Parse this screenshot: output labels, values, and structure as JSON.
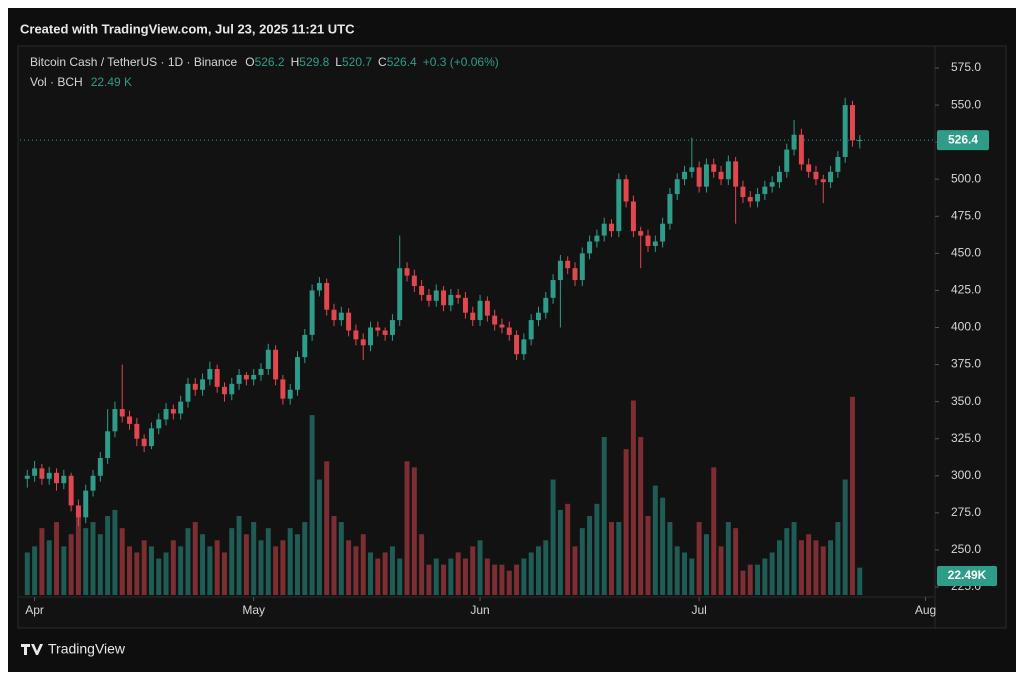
{
  "chart_data": {
    "type": "candlestick",
    "title": "Created with TradingView.com, Jul 23, 2025 11:21 UTC",
    "symbol": "Bitcoin Cash / TetherUS · 1D · Binance",
    "legend_keys": [
      "O",
      "H",
      "L",
      "C"
    ],
    "change": "+0.3 (+0.06%)",
    "volume_title": "Vol · BCH",
    "volume_header_label": "22.49 K",
    "volume_axis_label": "22.49K",
    "brand": "TradingView",
    "up_color": "#2e9c88",
    "down_color": "#e0474f",
    "volume_up_color": "#1f5c55",
    "volume_down_color": "#7c2e33",
    "grid": false,
    "xlim": [
      -1,
      124.3
    ],
    "xticks": [
      {
        "value": 1,
        "label": "Apr"
      },
      {
        "value": 31,
        "label": "May"
      },
      {
        "value": 62,
        "label": "Jun"
      },
      {
        "value": 92,
        "label": "Jul"
      },
      {
        "value": 123,
        "label": "Aug"
      }
    ],
    "ylim": [
      219.6,
      588.5
    ],
    "yticks": [
      {
        "value": 225,
        "label": "225.0"
      },
      {
        "value": 250,
        "label": "250.0"
      },
      {
        "value": 275,
        "label": "275.0"
      },
      {
        "value": 300,
        "label": "300.0"
      },
      {
        "value": 325,
        "label": "325.0"
      },
      {
        "value": 350,
        "label": "350.0"
      },
      {
        "value": 375,
        "label": "375.0"
      },
      {
        "value": 400,
        "label": "400.0"
      },
      {
        "value": 425,
        "label": "425.0"
      },
      {
        "value": 450,
        "label": "450.0"
      },
      {
        "value": 475,
        "label": "475.0"
      },
      {
        "value": 500,
        "label": "500.0"
      },
      {
        "value": 525,
        "label": "525.0"
      },
      {
        "value": 550,
        "label": "550.0"
      },
      {
        "value": 575,
        "label": "575.0"
      }
    ],
    "vlim": [
      0,
      450
    ],
    "ohlc": [
      [
        298,
        304,
        292,
        300
      ],
      [
        300,
        310,
        296,
        305
      ],
      [
        305,
        308,
        294,
        298
      ],
      [
        298,
        306,
        294,
        302
      ],
      [
        302,
        305,
        290,
        295
      ],
      [
        295,
        304,
        291,
        300
      ],
      [
        300,
        302,
        276,
        280
      ],
      [
        280,
        284,
        266,
        272
      ],
      [
        272,
        294,
        268,
        290
      ],
      [
        290,
        304,
        286,
        300
      ],
      [
        300,
        316,
        296,
        312
      ],
      [
        312,
        345,
        308,
        330
      ],
      [
        330,
        350,
        326,
        345
      ],
      [
        345,
        375,
        336,
        340
      ],
      [
        340,
        344,
        331,
        335
      ],
      [
        335,
        339,
        320,
        325
      ],
      [
        325,
        328,
        316,
        320
      ],
      [
        320,
        336,
        318,
        332
      ],
      [
        332,
        342,
        328,
        338
      ],
      [
        338,
        349,
        334,
        345
      ],
      [
        345,
        348,
        338,
        342
      ],
      [
        342,
        354,
        338,
        350
      ],
      [
        350,
        366,
        346,
        362
      ],
      [
        362,
        366,
        354,
        358
      ],
      [
        358,
        369,
        354,
        365
      ],
      [
        365,
        377,
        361,
        372
      ],
      [
        372,
        375,
        356,
        360
      ],
      [
        360,
        363,
        350,
        355
      ],
      [
        355,
        366,
        351,
        362
      ],
      [
        362,
        372,
        358,
        368
      ],
      [
        368,
        370,
        361,
        365
      ],
      [
        365,
        372,
        361,
        368
      ],
      [
        368,
        376,
        364,
        372
      ],
      [
        372,
        389,
        368,
        385
      ],
      [
        385,
        388,
        361,
        365
      ],
      [
        365,
        368,
        348,
        352
      ],
      [
        352,
        362,
        348,
        358
      ],
      [
        358,
        384,
        354,
        380
      ],
      [
        380,
        399,
        376,
        395
      ],
      [
        395,
        429,
        391,
        425
      ],
      [
        425,
        434,
        421,
        430
      ],
      [
        430,
        433,
        408,
        412
      ],
      [
        412,
        416,
        401,
        405
      ],
      [
        405,
        414,
        401,
        410
      ],
      [
        410,
        413,
        394,
        398
      ],
      [
        398,
        402,
        388,
        392
      ],
      [
        392,
        396,
        378,
        388
      ],
      [
        388,
        404,
        384,
        400
      ],
      [
        400,
        404,
        394,
        398
      ],
      [
        398,
        400,
        391,
        395
      ],
      [
        395,
        409,
        391,
        405
      ],
      [
        405,
        462,
        401,
        440
      ],
      [
        440,
        444,
        431,
        435
      ],
      [
        435,
        439,
        424,
        428
      ],
      [
        428,
        432,
        418,
        422
      ],
      [
        422,
        426,
        414,
        418
      ],
      [
        418,
        429,
        414,
        425
      ],
      [
        425,
        428,
        411,
        415
      ],
      [
        415,
        426,
        411,
        422
      ],
      [
        422,
        426,
        416,
        420
      ],
      [
        420,
        424,
        406,
        410
      ],
      [
        410,
        414,
        401,
        405
      ],
      [
        405,
        422,
        401,
        418
      ],
      [
        418,
        421,
        404,
        408
      ],
      [
        408,
        412,
        398,
        402
      ],
      [
        402,
        406,
        396,
        400
      ],
      [
        400,
        404,
        391,
        395
      ],
      [
        395,
        398,
        378,
        382
      ],
      [
        382,
        396,
        378,
        392
      ],
      [
        392,
        409,
        388,
        405
      ],
      [
        405,
        414,
        401,
        410
      ],
      [
        410,
        424,
        406,
        420
      ],
      [
        420,
        436,
        416,
        432
      ],
      [
        432,
        449,
        400,
        445
      ],
      [
        445,
        448,
        436,
        440
      ],
      [
        440,
        444,
        428,
        432
      ],
      [
        432,
        454,
        428,
        450
      ],
      [
        450,
        462,
        446,
        458
      ],
      [
        458,
        466,
        454,
        462
      ],
      [
        462,
        474,
        458,
        470
      ],
      [
        470,
        473,
        461,
        465
      ],
      [
        465,
        504,
        461,
        500
      ],
      [
        500,
        503,
        481,
        485
      ],
      [
        485,
        489,
        461,
        465
      ],
      [
        465,
        468,
        440,
        462
      ],
      [
        462,
        466,
        451,
        455
      ],
      [
        455,
        462,
        451,
        458
      ],
      [
        458,
        474,
        454,
        470
      ],
      [
        470,
        494,
        466,
        490
      ],
      [
        490,
        504,
        486,
        500
      ],
      [
        500,
        509,
        496,
        505
      ],
      [
        505,
        528,
        501,
        508
      ],
      [
        508,
        512,
        491,
        495
      ],
      [
        495,
        514,
        491,
        510
      ],
      [
        510,
        514,
        501,
        505
      ],
      [
        505,
        509,
        496,
        500
      ],
      [
        500,
        516,
        496,
        512
      ],
      [
        512,
        515,
        470,
        495
      ],
      [
        495,
        499,
        484,
        488
      ],
      [
        488,
        492,
        481,
        485
      ],
      [
        485,
        494,
        481,
        490
      ],
      [
        490,
        499,
        486,
        495
      ],
      [
        495,
        502,
        491,
        498
      ],
      [
        498,
        509,
        494,
        505
      ],
      [
        505,
        524,
        501,
        520
      ],
      [
        520,
        540,
        516,
        530
      ],
      [
        530,
        534,
        506,
        510
      ],
      [
        510,
        514,
        501,
        505
      ],
      [
        505,
        509,
        496,
        500
      ],
      [
        500,
        503,
        484,
        498
      ],
      [
        498,
        509,
        494,
        505
      ],
      [
        505,
        519,
        501,
        515
      ],
      [
        515,
        555,
        511,
        550
      ],
      [
        550,
        553,
        522,
        526.2
      ],
      [
        526.2,
        529.8,
        520.7,
        526.4
      ]
    ],
    "volume": [
      35,
      40,
      55,
      45,
      60,
      40,
      50,
      70,
      55,
      60,
      50,
      65,
      70,
      55,
      40,
      35,
      45,
      40,
      30,
      35,
      45,
      40,
      55,
      60,
      50,
      40,
      45,
      35,
      55,
      65,
      50,
      60,
      45,
      55,
      40,
      45,
      55,
      50,
      60,
      148,
      95,
      110,
      65,
      60,
      45,
      40,
      50,
      35,
      30,
      35,
      40,
      30,
      110,
      105,
      50,
      25,
      30,
      25,
      30,
      35,
      30,
      40,
      45,
      30,
      25,
      25,
      20,
      25,
      30,
      35,
      40,
      45,
      95,
      70,
      75,
      40,
      55,
      65,
      75,
      130,
      60,
      60,
      120,
      160,
      130,
      65,
      90,
      80,
      60,
      40,
      35,
      30,
      60,
      50,
      105,
      40,
      60,
      55,
      20,
      25,
      25,
      30,
      35,
      45,
      55,
      60,
      45,
      50,
      45,
      40,
      45,
      60,
      95,
      163,
      22.49
    ]
  }
}
